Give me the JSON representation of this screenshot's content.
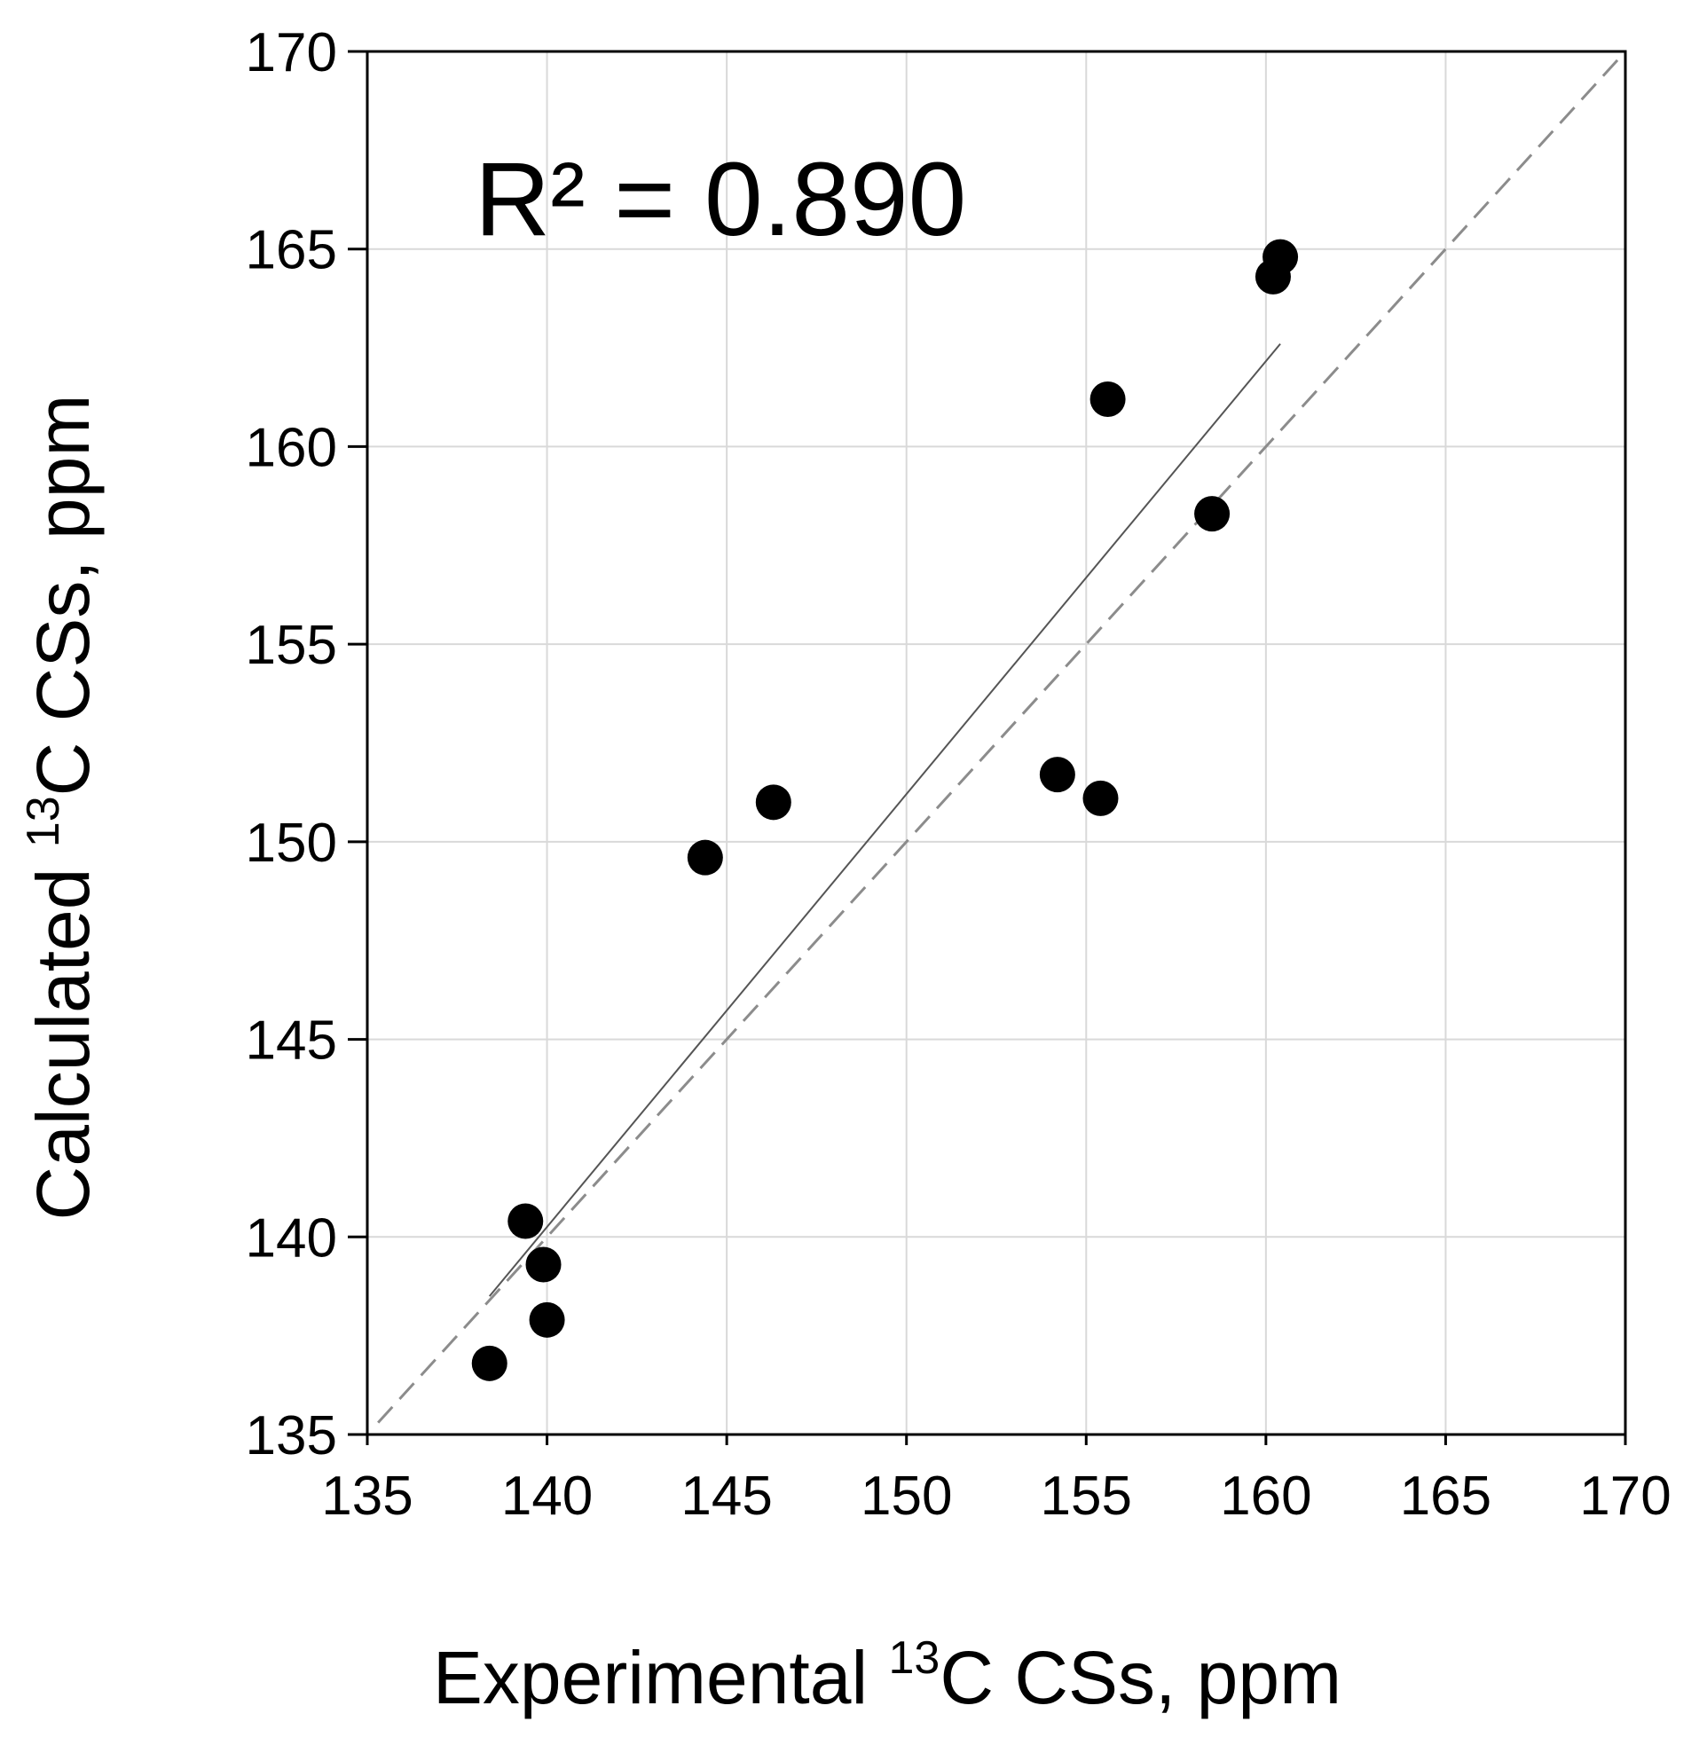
{
  "chart_data": {
    "type": "scatter",
    "title": "",
    "annotation": "R² = 0.890",
    "xlabel": {
      "prefix": "Experimental ",
      "superscript": "13",
      "suffix": "C CSs, ppm"
    },
    "ylabel": {
      "prefix": "Calculated ",
      "superscript": "13",
      "suffix": "C CSs, ppm"
    },
    "xlim": [
      135,
      170
    ],
    "ylim": [
      135,
      170
    ],
    "xticks": [
      "135",
      "140",
      "145",
      "150",
      "155",
      "160",
      "165",
      "170"
    ],
    "yticks": [
      "135",
      "140",
      "145",
      "150",
      "155",
      "160",
      "165",
      "170"
    ],
    "grid": true,
    "points": [
      {
        "x": 138.4,
        "y": 136.8
      },
      {
        "x": 139.4,
        "y": 140.4
      },
      {
        "x": 139.9,
        "y": 139.3
      },
      {
        "x": 140.0,
        "y": 137.9
      },
      {
        "x": 144.4,
        "y": 149.6
      },
      {
        "x": 146.3,
        "y": 151.0
      },
      {
        "x": 154.2,
        "y": 151.7
      },
      {
        "x": 155.4,
        "y": 151.1
      },
      {
        "x": 155.6,
        "y": 161.2
      },
      {
        "x": 158.5,
        "y": 158.3
      },
      {
        "x": 160.2,
        "y": 164.3
      },
      {
        "x": 160.4,
        "y": 164.8
      }
    ],
    "trendline": {
      "x1": 138.4,
      "y1": 138.5,
      "x2": 160.4,
      "y2": 162.6
    },
    "identity_line": {
      "x1": 135.3,
      "y1": 135.3,
      "x2": 170,
      "y2": 170
    },
    "colors": {
      "points": "#000000",
      "grid": "#d9d9d9",
      "trendline": "#555555",
      "identity": "#8c8c8c"
    }
  }
}
